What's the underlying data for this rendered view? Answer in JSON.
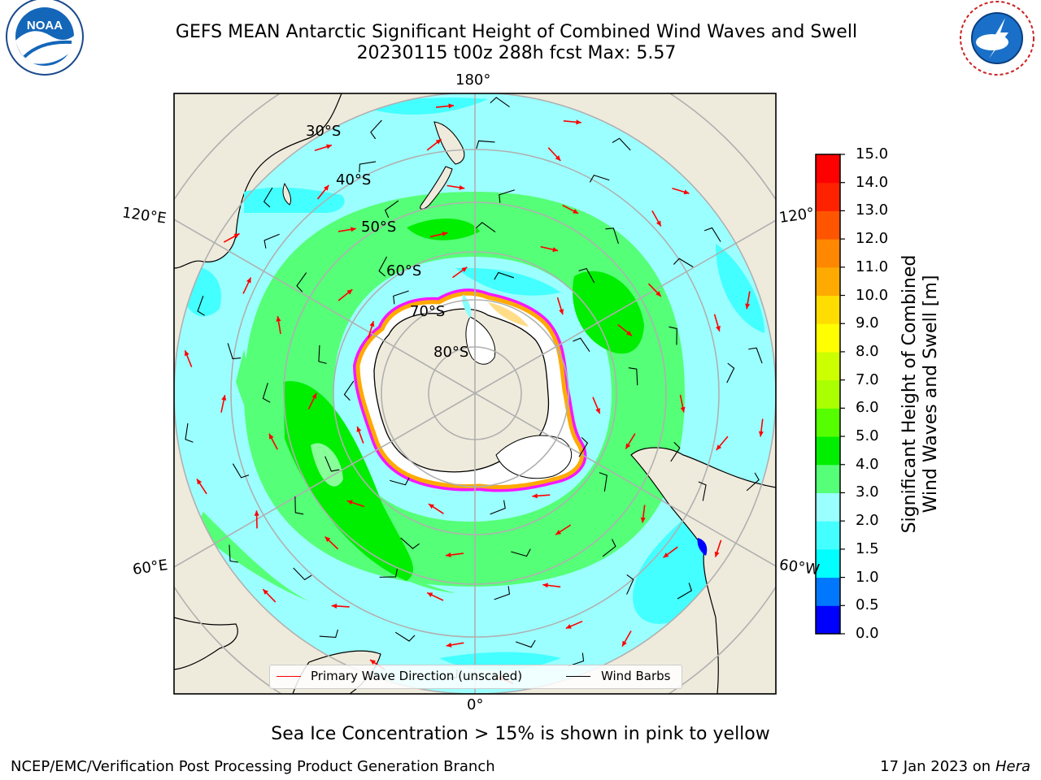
{
  "header": {
    "title_line1": "GEFS MEAN Antarctic Significant Height of Combined Wind Waves and Swell",
    "title_line2": "20230115 t00z 288h fcst   Max: 5.57"
  },
  "logos": {
    "left": "NOAA",
    "right": "NATIONAL WEATHER SERVICE"
  },
  "map": {
    "projection": "south polar stereographic",
    "lon_labels": {
      "top": "180°",
      "bottom": "0°",
      "upper_left": "120°E",
      "lower_left": "60°E",
      "upper_right": "120°",
      "lower_right": "60°W"
    },
    "lat_labels": [
      "30°S",
      "40°S",
      "50°S",
      "60°S",
      "70°S",
      "80°S"
    ],
    "colors": {
      "land": "#efebdc",
      "coast": "#000000",
      "grid": "#b0b0b0",
      "wave_arrow": "#ff0000",
      "wind_barb": "#000000",
      "sea_ice_low": "#ff00ff",
      "sea_ice_high": "#ffffff"
    }
  },
  "legend": {
    "primary_wave_label": "Primary Wave Direction (unscaled)",
    "wind_barbs_label": "Wind Barbs"
  },
  "colorbar": {
    "label_line1": "Significant Height of Combined",
    "label_line2": "Wind Waves and Swell [m]",
    "ticks": [
      "0.0",
      "0.5",
      "1.0",
      "1.5",
      "2.0",
      "3.0",
      "4.0",
      "5.0",
      "6.0",
      "7.0",
      "8.0",
      "9.0",
      "10.0",
      "11.0",
      "12.0",
      "13.0",
      "14.0",
      "15.0"
    ],
    "colors": [
      "#0000ff",
      "#0077ff",
      "#00ffff",
      "#44ffff",
      "#99ffff",
      "#55ff77",
      "#00ee00",
      "#55ff00",
      "#aaff00",
      "#ccff00",
      "#ffff00",
      "#ffdd00",
      "#ffaa00",
      "#ff8800",
      "#ff5500",
      "#ff2200",
      "#ff0000"
    ]
  },
  "caption": "Sea Ice Concentration > 15% is shown in pink to yellow",
  "footer": {
    "left": "NCEP/EMC/Verification Post Processing Product Generation Branch",
    "right_date": "17 Jan 2023 on ",
    "right_host": "Hera"
  }
}
